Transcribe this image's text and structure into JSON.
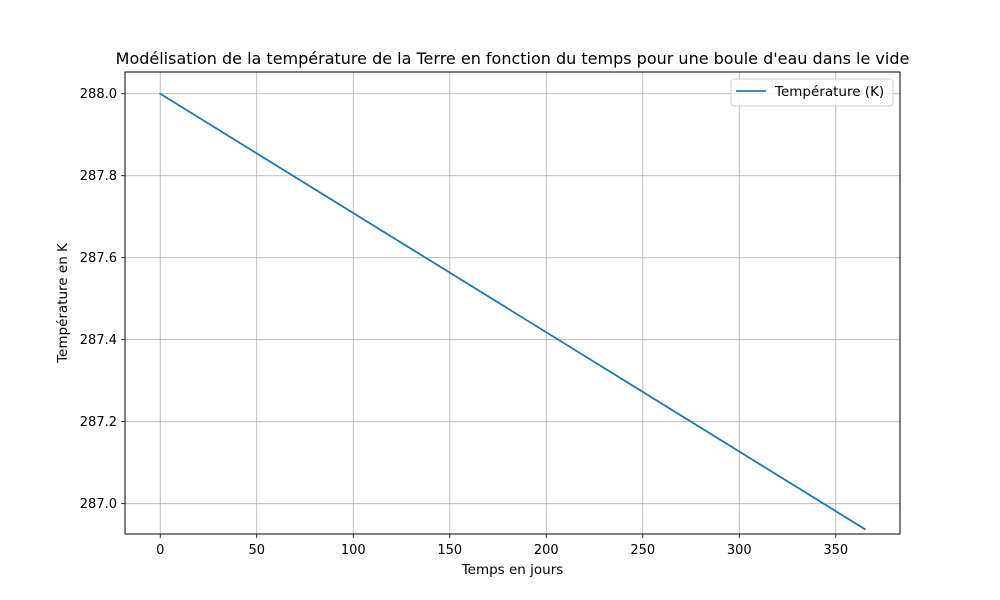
{
  "chart_data": {
    "type": "line",
    "title": "Modélisation de la température de la Terre en fonction du temps pour une boule d'eau dans le vide",
    "xlabel": "Temps en jours",
    "ylabel": "Température en K",
    "xlim": [
      -18.25,
      383.25
    ],
    "ylim": [
      286.926,
      288.053
    ],
    "xticks": [
      0,
      50,
      100,
      150,
      200,
      250,
      300,
      350
    ],
    "xtick_labels": [
      "0",
      "50",
      "100",
      "150",
      "200",
      "250",
      "300",
      "350"
    ],
    "yticks": [
      287.0,
      287.2,
      287.4,
      287.6,
      287.8,
      288.0
    ],
    "ytick_labels": [
      "287.0",
      "287.2",
      "287.4",
      "287.6",
      "287.8",
      "288.0"
    ],
    "grid": true,
    "legend_position": "top-right",
    "series": [
      {
        "name": "Température (K)",
        "color": "#1f77b4",
        "x": [
          0,
          365
        ],
        "y": [
          288.0,
          286.938
        ]
      }
    ]
  }
}
